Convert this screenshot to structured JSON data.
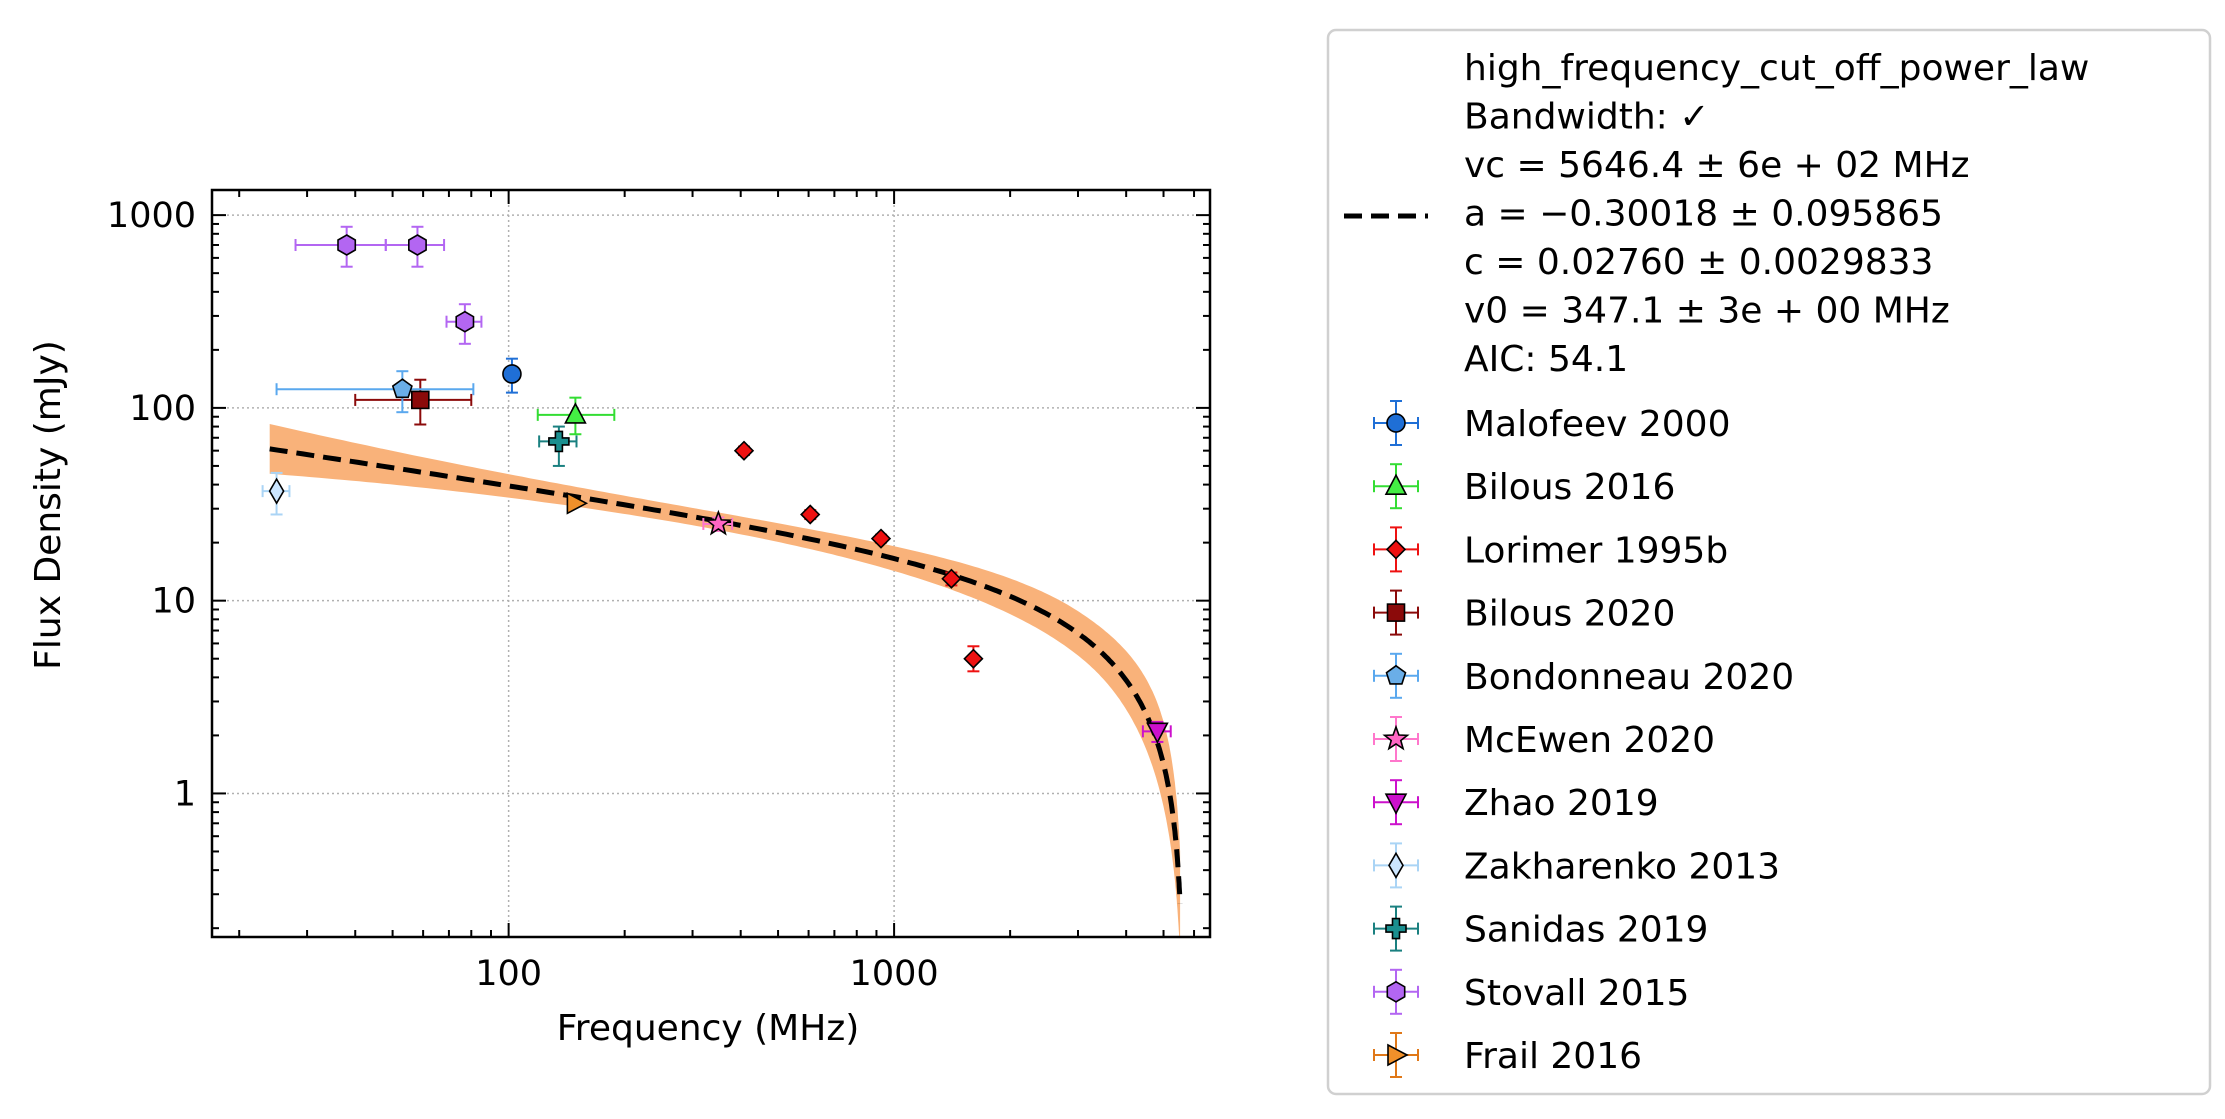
{
  "chart_data": {
    "type": "scatter",
    "xlabel": "Frequency (MHz)",
    "ylabel": "Flux Density (mJy)",
    "xscale": "log",
    "yscale": "log",
    "xlim": [
      17,
      6600
    ],
    "ylim": [
      0.18,
      1350
    ],
    "grid": true,
    "legend_position": "outside-right",
    "x_ticks": [
      {
        "value": 100,
        "label": "100"
      },
      {
        "value": 1000,
        "label": "1000"
      }
    ],
    "y_ticks": [
      {
        "value": 1,
        "label": "1"
      },
      {
        "value": 10,
        "label": "10"
      },
      {
        "value": 100,
        "label": "100"
      },
      {
        "value": 1000,
        "label": "1000"
      }
    ],
    "fit": {
      "model": "high_frequency_cut_off_power_law",
      "color": "#000000",
      "band_color": "#f9b27a",
      "vc": 5646.4,
      "a": -0.30018,
      "c": 0.0276,
      "v0": 347.1,
      "x_start": 24,
      "x_end": 5520,
      "legend_lines": [
        "high_frequency_cut_off_power_law",
        "Bandwidth: ✓",
        "vc = 5646.4 ± 6e + 02 MHz",
        "a = −0.30018 ± 0.095865",
        "c = 0.02760 ± 0.0029833",
        "v0 = 347.1 ± 3e + 00 MHz",
        "AIC: 54.1"
      ]
    },
    "series": [
      {
        "name": "Malofeev 2000",
        "marker": "circle",
        "color": "#1f6fd6",
        "ecolor": "#1f6fd6",
        "points": [
          {
            "x": 102,
            "y": 150,
            "xlo": 102,
            "xhi": 102,
            "ylo": 120,
            "yhi": 180
          }
        ]
      },
      {
        "name": "Bilous 2016",
        "marker": "triangle-up",
        "color": "#44ee44",
        "ecolor": "#33dd33",
        "points": [
          {
            "x": 149,
            "y": 92,
            "xlo": 119,
            "xhi": 188,
            "ylo": 73,
            "yhi": 113
          }
        ]
      },
      {
        "name": "Lorimer 1995b",
        "marker": "diamond",
        "color": "#ee1111",
        "ecolor": "#ee1111",
        "points": [
          {
            "x": 408,
            "y": 60,
            "xlo": 408,
            "xhi": 408,
            "ylo": 57,
            "yhi": 63
          },
          {
            "x": 606,
            "y": 28,
            "xlo": 606,
            "xhi": 606,
            "ylo": 26.5,
            "yhi": 29.5
          },
          {
            "x": 925,
            "y": 21,
            "xlo": 925,
            "xhi": 925,
            "ylo": 20,
            "yhi": 22
          },
          {
            "x": 1408,
            "y": 13,
            "xlo": 1408,
            "xhi": 1408,
            "ylo": 12,
            "yhi": 14
          },
          {
            "x": 1606,
            "y": 5,
            "xlo": 1606,
            "xhi": 1606,
            "ylo": 4.3,
            "yhi": 5.8
          }
        ]
      },
      {
        "name": "Bilous 2020",
        "marker": "square",
        "color": "#8b0a0a",
        "ecolor": "#8b0a0a",
        "points": [
          {
            "x": 59,
            "y": 110,
            "xlo": 40,
            "xhi": 80,
            "ylo": 82,
            "yhi": 140
          }
        ]
      },
      {
        "name": "Bondonneau 2020",
        "marker": "pentagon",
        "color": "#6aaee8",
        "ecolor": "#5aa8ee",
        "points": [
          {
            "x": 53,
            "y": 125,
            "xlo": 25,
            "xhi": 81,
            "ylo": 95,
            "yhi": 155
          }
        ]
      },
      {
        "name": "McEwen 2020",
        "marker": "star",
        "color": "#ff66c4",
        "ecolor": "#ff77cc",
        "points": [
          {
            "x": 350,
            "y": 25,
            "xlo": 320,
            "xhi": 380,
            "ylo": 23,
            "yhi": 27
          }
        ]
      },
      {
        "name": "Zhao 2019",
        "marker": "triangle-down",
        "color": "#cc11cc",
        "ecolor": "#cc11cc",
        "points": [
          {
            "x": 4820,
            "y": 2.1,
            "xlo": 4420,
            "xhi": 5220,
            "ylo": 1.85,
            "yhi": 2.35
          }
        ]
      },
      {
        "name": "Zakharenko 2013",
        "marker": "thin-diamond",
        "color": "#cce6ff",
        "ecolor": "#aad4f5",
        "points": [
          {
            "x": 25,
            "y": 37,
            "xlo": 23,
            "xhi": 27,
            "ylo": 28,
            "yhi": 46
          }
        ]
      },
      {
        "name": "Sanidas 2019",
        "marker": "plus",
        "color": "#1a8f8f",
        "ecolor": "#1a8080",
        "points": [
          {
            "x": 135,
            "y": 67,
            "xlo": 120,
            "xhi": 150,
            "ylo": 50,
            "yhi": 80
          }
        ]
      },
      {
        "name": "Stovall 2015",
        "marker": "hexagon",
        "color": "#b366f2",
        "ecolor": "#b366f2",
        "points": [
          {
            "x": 38,
            "y": 700,
            "xlo": 28,
            "xhi": 48,
            "ylo": 540,
            "yhi": 870
          },
          {
            "x": 58,
            "y": 700,
            "xlo": 48,
            "xhi": 68,
            "ylo": 540,
            "yhi": 870
          },
          {
            "x": 77,
            "y": 280,
            "xlo": 69,
            "xhi": 85,
            "ylo": 215,
            "yhi": 345
          }
        ]
      },
      {
        "name": "Frail 2016",
        "marker": "triangle-right",
        "color": "#f0902a",
        "ecolor": "#e07818",
        "points": [
          {
            "x": 149,
            "y": 32,
            "xlo": 149,
            "xhi": 149,
            "ylo": 31,
            "yhi": 33
          }
        ]
      }
    ]
  }
}
